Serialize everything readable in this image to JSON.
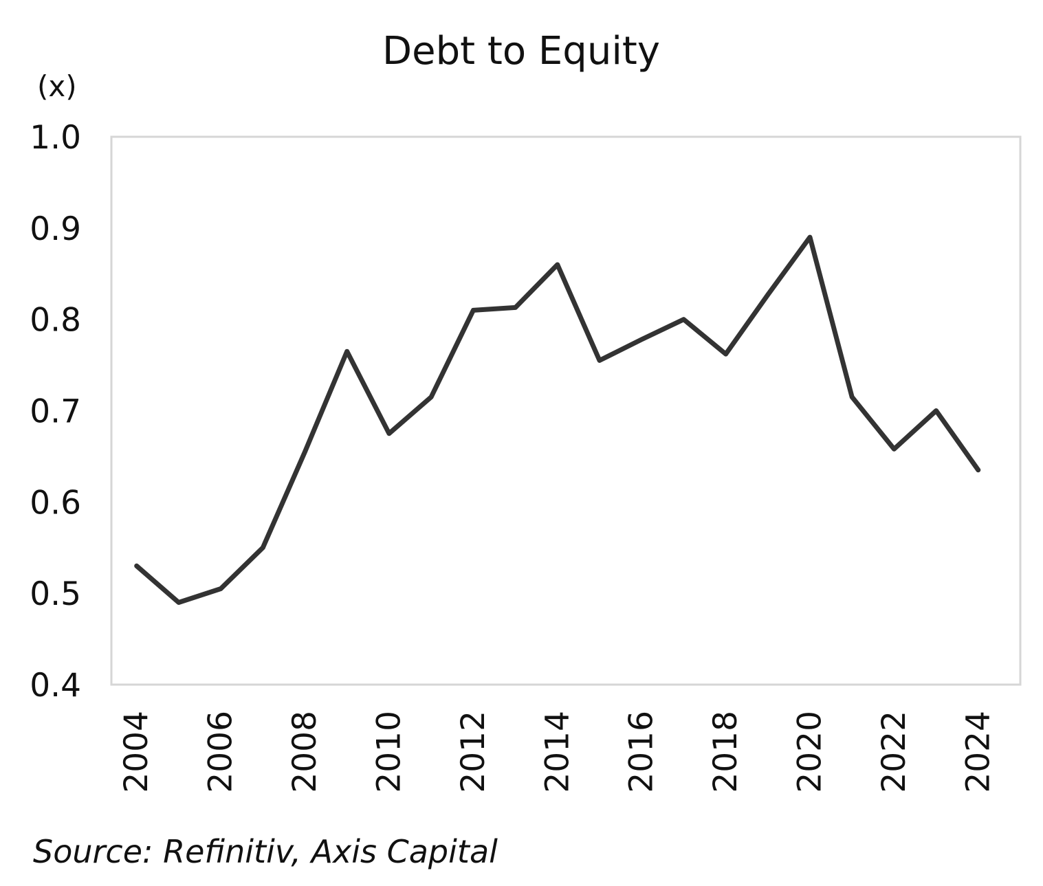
{
  "chart_data": {
    "type": "line",
    "title": "Debt to Equity",
    "unit_label": "(x)",
    "xlabel": "",
    "ylabel": "",
    "x": [
      2004,
      2005,
      2006,
      2007,
      2008,
      2009,
      2010,
      2011,
      2012,
      2013,
      2014,
      2015,
      2016,
      2017,
      2018,
      2019,
      2020,
      2021,
      2022,
      2023,
      2024
    ],
    "series": [
      {
        "values": [
          0.53,
          0.49,
          0.505,
          0.55,
          0.655,
          0.765,
          0.675,
          0.715,
          0.81,
          0.813,
          0.86,
          0.755,
          0.778,
          0.8,
          0.762,
          0.827,
          0.89,
          0.715,
          0.658,
          0.7,
          0.635
        ],
        "color": "#333333"
      }
    ],
    "ylim": [
      0.4,
      1.0
    ],
    "xlim": [
      2003.4,
      2025.0
    ],
    "y_ticks": [
      "0.4",
      "0.5",
      "0.6",
      "0.7",
      "0.8",
      "0.9",
      "1.0"
    ],
    "x_ticks": [
      "2004",
      "2006",
      "2008",
      "2010",
      "2012",
      "2014",
      "2016",
      "2018",
      "2020",
      "2022",
      "2024"
    ],
    "grid": false,
    "legend": "none"
  },
  "source": "Source: Refinitiv, Axis Capital"
}
